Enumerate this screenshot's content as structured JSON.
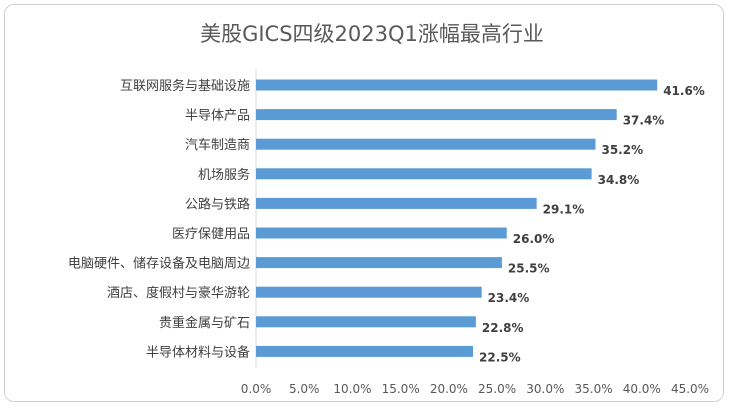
{
  "chart_data": {
    "type": "bar",
    "orientation": "horizontal",
    "title": "美股GICS四级2023Q1涨幅最高行业",
    "categories": [
      "互联网服务与基础设施",
      "半导体产品",
      "汽车制造商",
      "机场服务",
      "公路与铁路",
      "医疗保健用品",
      "电脑硬件、储存设备及电脑周边",
      "酒店、度假村与豪华游轮",
      "贵重金属与矿石",
      "半导体材料与设备"
    ],
    "values": [
      41.6,
      37.4,
      35.2,
      34.8,
      29.1,
      26.0,
      25.5,
      23.4,
      22.8,
      22.5
    ],
    "value_labels": [
      "41.6%",
      "37.4%",
      "35.2%",
      "34.8%",
      "29.1%",
      "26.0%",
      "25.5%",
      "23.4%",
      "22.8%",
      "22.5%"
    ],
    "xlim": [
      0,
      45
    ],
    "x_ticks": [
      "0.0%",
      "5.0%",
      "10.0%",
      "15.0%",
      "20.0%",
      "25.0%",
      "30.0%",
      "35.0%",
      "40.0%",
      "45.0%"
    ],
    "grid": false,
    "legend": "none",
    "bar_color": "#5b9bd5"
  }
}
